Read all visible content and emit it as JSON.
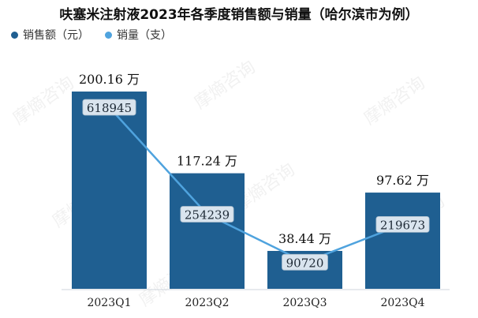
{
  "title": "呋塞米注射液2023年各季度销售额与销量（哈尔滨市为例）",
  "legend": {
    "sales": "销售额（元）",
    "volume": "销量（支）"
  },
  "watermark": "摩熵咨询",
  "colors": {
    "bar": "#1f5f91",
    "line": "#4fa3de",
    "label_box": "#d9e4ee"
  },
  "chart_data": {
    "type": "bar",
    "categories": [
      "2023Q1",
      "2023Q2",
      "2023Q3",
      "2023Q4"
    ],
    "series": [
      {
        "name": "销售额（元）",
        "values": [
          2001600,
          1172400,
          384400,
          976200
        ],
        "data_labels": [
          "200.16 万",
          "117.24 万",
          "38.44 万",
          "97.62 万"
        ]
      },
      {
        "name": "销量（支）",
        "type": "line",
        "values": [
          618945,
          254239,
          90720,
          219673
        ],
        "data_labels": [
          "618945",
          "254239",
          "90720",
          "219673"
        ]
      }
    ],
    "grid": false,
    "legend_position": "top-left"
  }
}
